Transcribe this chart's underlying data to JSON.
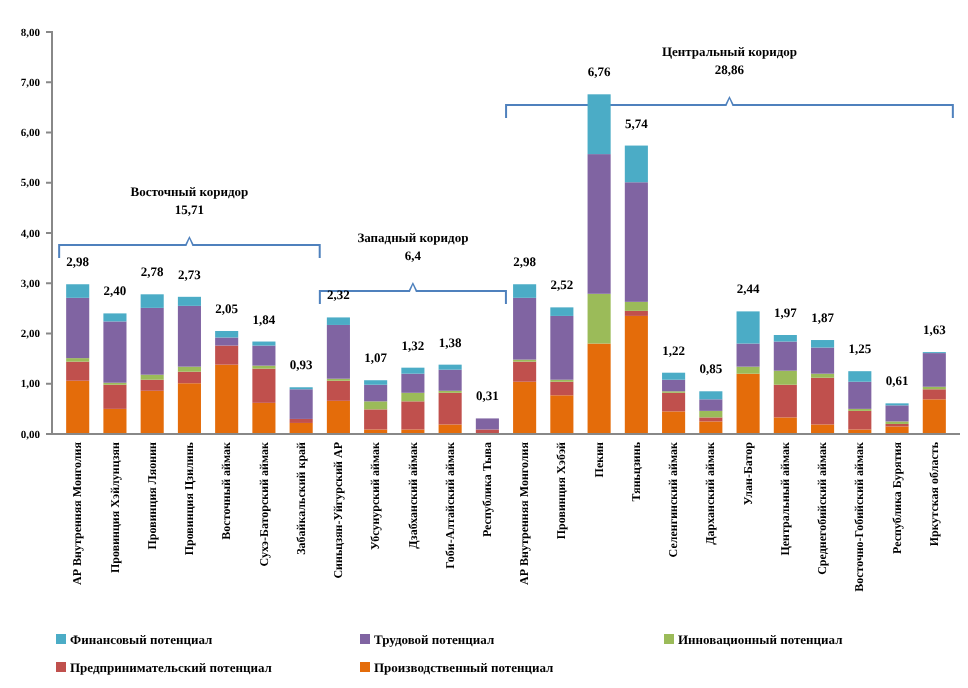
{
  "chart_data": {
    "type": "bar",
    "stacked": true,
    "categories": [
      "АР Внутренняя Монголия",
      "Провинция Хэйлунцзян",
      "Провинция Ляонин",
      "Провинция Цзилинь",
      "Восточный аймак",
      "Сухэ-Баторский аймак",
      "Забайкальский край",
      "Синьцзян-Уйгурский АР",
      "Убсунурский аймак",
      "Дзабханский аймак",
      "Гоби-Алтайский аймак",
      "Республика Тыва",
      "АР Внутренняя Монголия",
      "Провинция Хэбэй",
      "Пекин",
      "Тяньцзинь",
      "Селенгинский аймак",
      "Дарханский аймак",
      "Улан-Батор",
      "Центральный аймак",
      "Среднегобийский аймак",
      "Восточно-Гобийский аймак",
      "Республика Бурятия",
      "Иркутская область"
    ],
    "series": [
      {
        "name": "Производственный потенциал",
        "color": "#e46c0a",
        "values": [
          1.06,
          0.5,
          0.86,
          1.01,
          1.38,
          0.62,
          0.22,
          0.66,
          0.09,
          0.09,
          0.19,
          0.02,
          1.04,
          0.77,
          1.8,
          2.35,
          0.45,
          0.25,
          1.2,
          0.33,
          0.19,
          0.09,
          0.15,
          0.69
        ]
      },
      {
        "name": "Предпринимательский потенциал",
        "color": "#c0504d",
        "values": [
          0.38,
          0.48,
          0.22,
          0.23,
          0.38,
          0.68,
          0.08,
          0.4,
          0.4,
          0.56,
          0.63,
          0.07,
          0.4,
          0.27,
          0,
          0.1,
          0.37,
          0.08,
          0,
          0.65,
          0.93,
          0.37,
          0.05,
          0.2
        ]
      },
      {
        "name": "Инновационный потенциал",
        "color": "#9bbb59",
        "values": [
          0.07,
          0.04,
          0.1,
          0.1,
          0,
          0.06,
          0,
          0.04,
          0.16,
          0.17,
          0.04,
          0,
          0.04,
          0.04,
          0.99,
          0.18,
          0.03,
          0.13,
          0.14,
          0.28,
          0.08,
          0.04,
          0.05,
          0.05
        ]
      },
      {
        "name": "Трудовой потенциал",
        "color": "#8064a2",
        "values": [
          1.2,
          1.22,
          1.33,
          1.21,
          0.16,
          0.4,
          0.59,
          1.07,
          0.33,
          0.38,
          0.42,
          0.22,
          1.23,
          1.27,
          2.78,
          2.38,
          0.23,
          0.23,
          0.46,
          0.58,
          0.52,
          0.54,
          0.32,
          0.67
        ]
      },
      {
        "name": "Финансовый потенциал",
        "color": "#4bacc6",
        "values": [
          0.27,
          0.16,
          0.27,
          0.18,
          0.13,
          0.08,
          0.04,
          0.15,
          0.09,
          0.12,
          0.1,
          0,
          0.27,
          0.17,
          1.19,
          0.73,
          0.14,
          0.16,
          0.64,
          0.13,
          0.15,
          0.21,
          0.04,
          0.02
        ]
      }
    ],
    "totals": [
      "2,98",
      "2,40",
      "2,78",
      "2,73",
      "2,05",
      "1,84",
      "0,93",
      "2,32",
      "1,07",
      "1,32",
      "1,38",
      "0,31",
      "2,98",
      "2,52",
      "6,76",
      "5,74",
      "1,22",
      "0,85",
      "2,44",
      "1,97",
      "1,87",
      "1,25",
      "0,61",
      "1,63"
    ],
    "ylim": [
      0,
      8
    ],
    "yticks": [
      {
        "value": 0,
        "label": "0,00"
      },
      {
        "value": 1,
        "label": "1,00"
      },
      {
        "value": 2,
        "label": "2,00"
      },
      {
        "value": 3,
        "label": "3,00"
      },
      {
        "value": 4,
        "label": "4,00"
      },
      {
        "value": 5,
        "label": "5,00"
      },
      {
        "value": 6,
        "label": "6,00"
      },
      {
        "value": 7,
        "label": "7,00"
      },
      {
        "value": 8,
        "label": "8,00"
      }
    ],
    "annotations": [
      "Восточный коридор\n15,71",
      "Западный коридор\n6,4",
      "Центральный коридор\n28,86"
    ],
    "legend": "bottom",
    "grid": false
  }
}
